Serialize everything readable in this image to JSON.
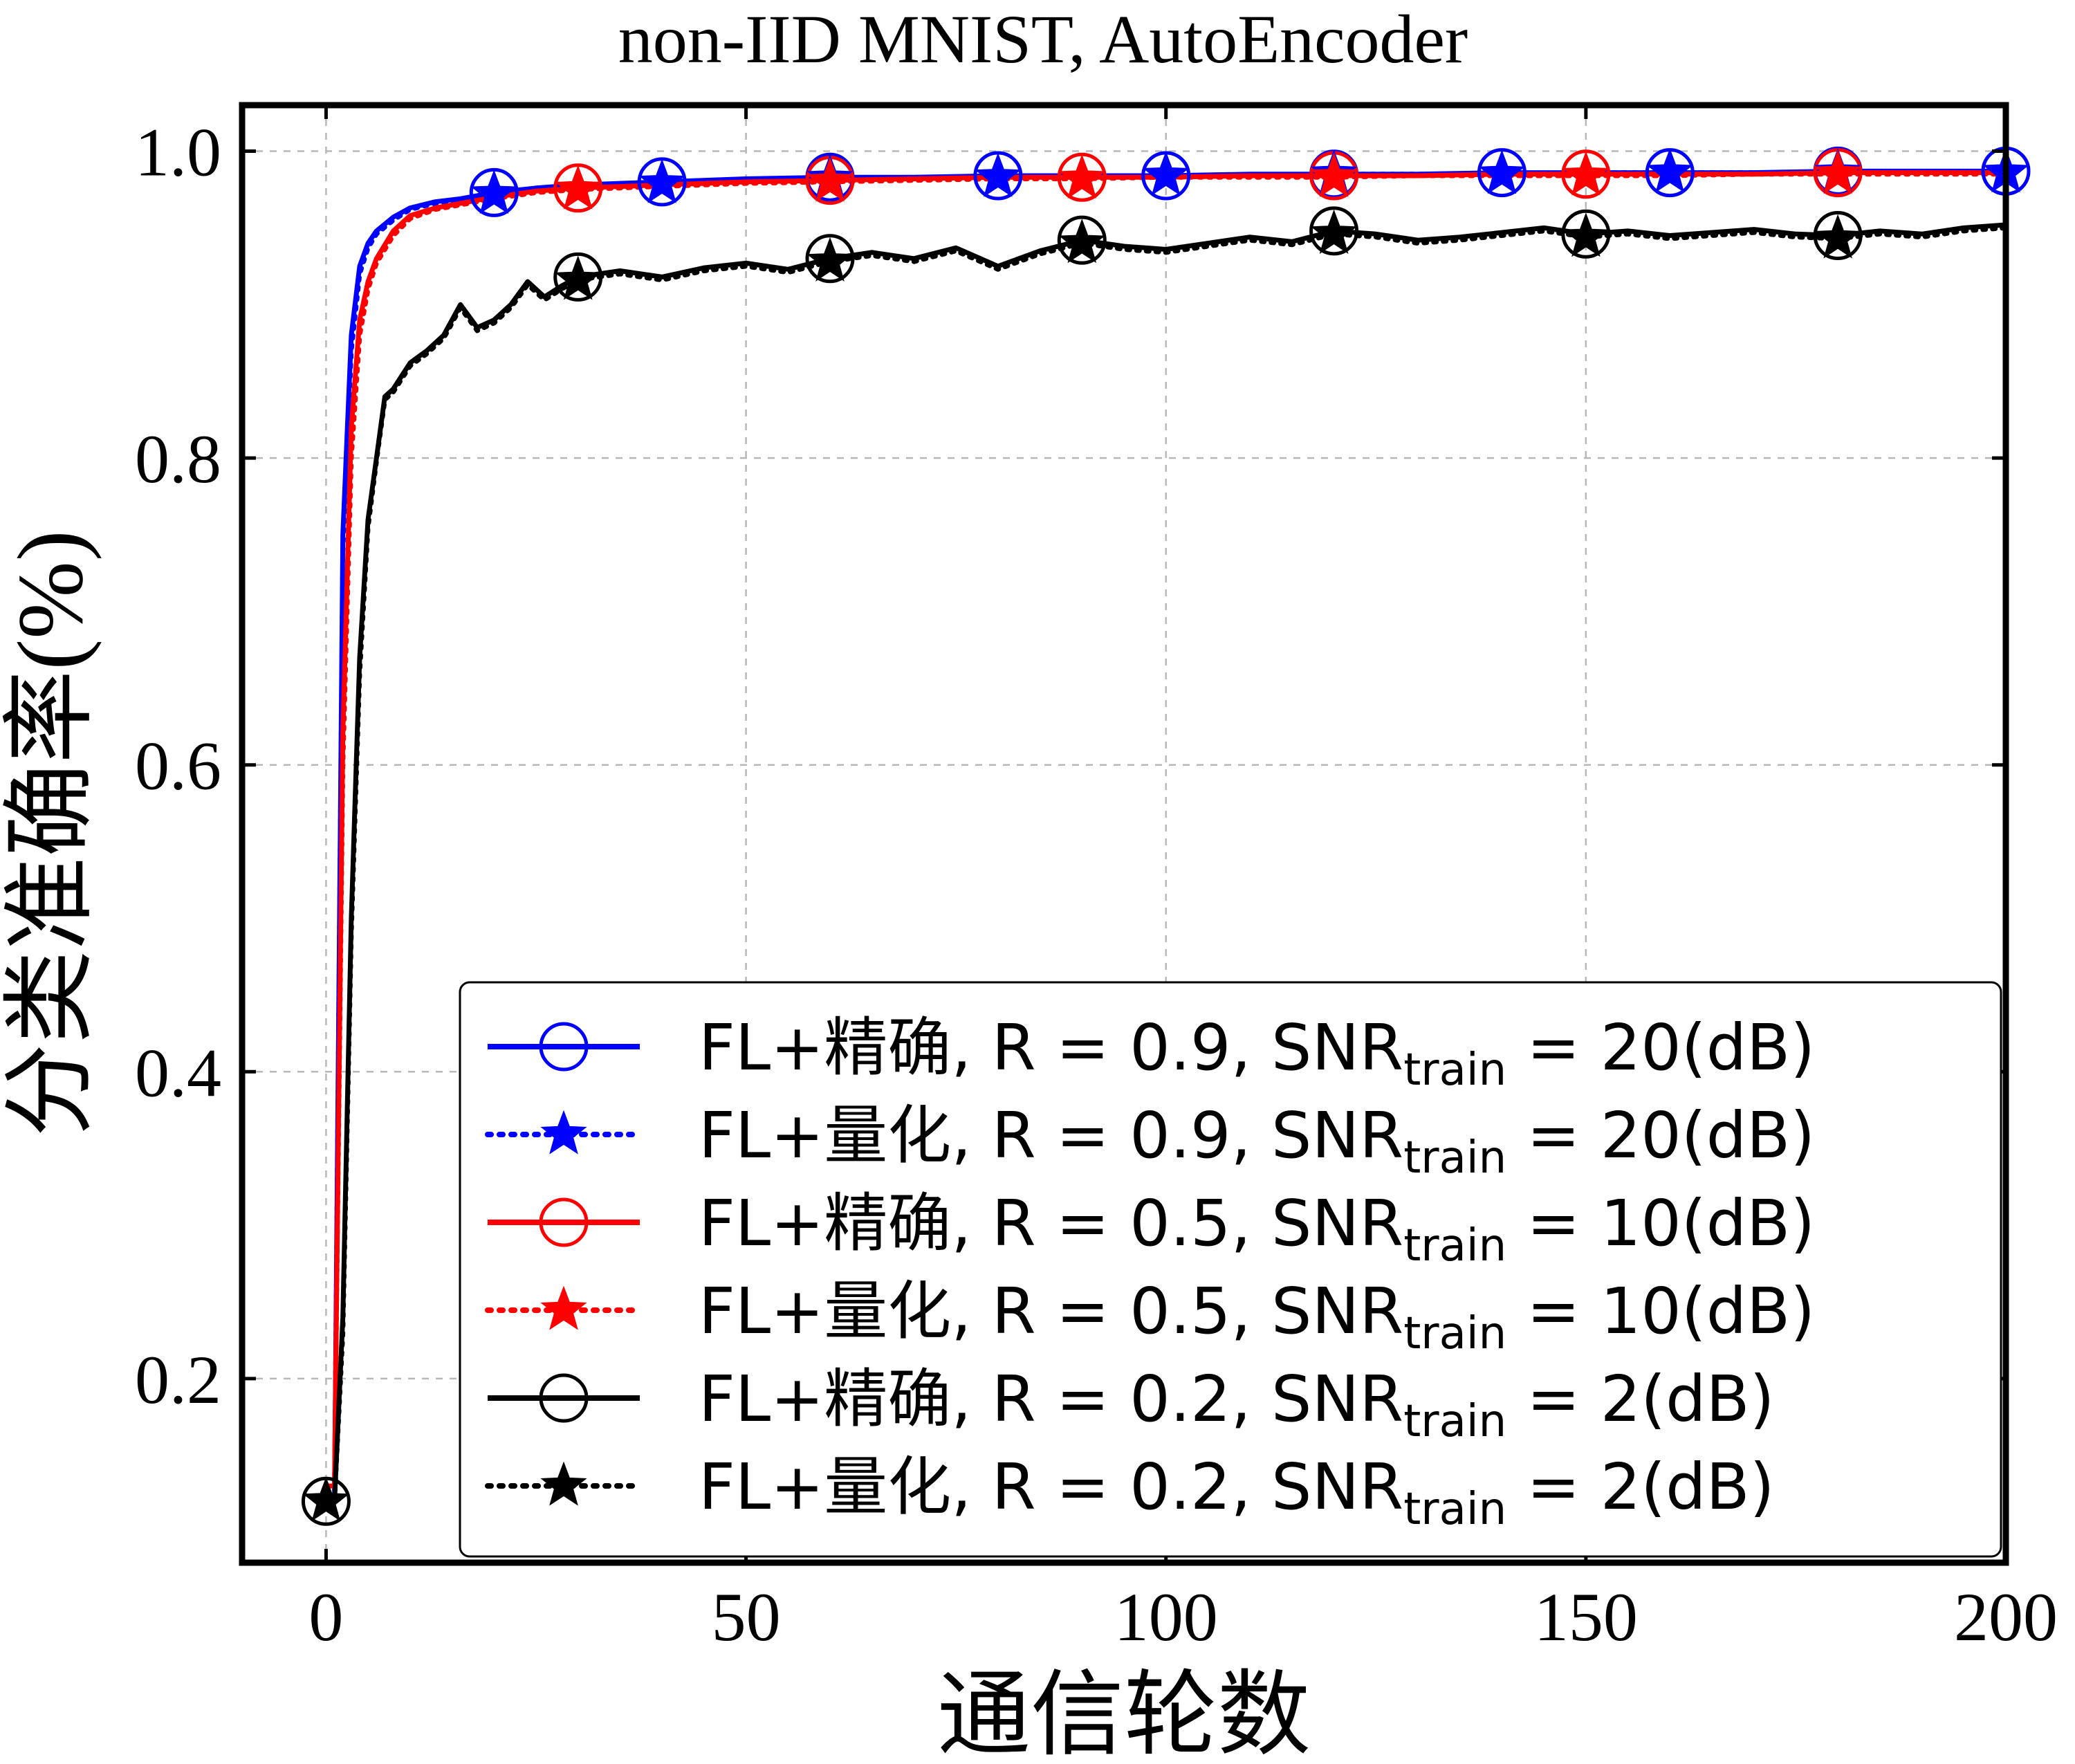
{
  "chart_data": {
    "type": "line",
    "title": "non-IID MNIST,  AutoEncoder",
    "xlabel": "通信轮数",
    "ylabel": "分类准确率(%)",
    "xlim": [
      -10,
      200
    ],
    "ylim": [
      0.08,
      1.03
    ],
    "xticks": [
      0,
      50,
      100,
      150,
      200
    ],
    "xtick_labels": [
      "0",
      "50",
      "100",
      "150",
      "200"
    ],
    "yticks": [
      0.2,
      0.4,
      0.6,
      0.8,
      1.0
    ],
    "ytick_labels": [
      "0.2",
      "0.4",
      "0.6",
      "0.8",
      "1.0"
    ],
    "grid": true,
    "legend_position": "lower-right",
    "series": [
      {
        "legend_prefix": "FL+精确,  R = 0.9, SNR",
        "legend_sub": "train",
        "legend_suffix": " = 20(dB)",
        "color": "#0000ff",
        "linestyle": "solid",
        "marker": "circle",
        "x": [
          0,
          1,
          2,
          3,
          4,
          5,
          6,
          8,
          10,
          13,
          16,
          20,
          25,
          30,
          40,
          50,
          60,
          70,
          80,
          90,
          100,
          110,
          120,
          130,
          140,
          150,
          160,
          170,
          180,
          190,
          200
        ],
        "y": [
          0.12,
          0.12,
          0.75,
          0.88,
          0.925,
          0.94,
          0.948,
          0.957,
          0.963,
          0.967,
          0.969,
          0.973,
          0.976,
          0.978,
          0.98,
          0.982,
          0.983,
          0.983,
          0.984,
          0.984,
          0.984,
          0.985,
          0.985,
          0.985,
          0.986,
          0.986,
          0.986,
          0.986,
          0.987,
          0.987,
          0.987
        ],
        "marker_x": [
          20,
          40,
          60,
          80,
          100,
          120,
          140,
          160,
          180,
          200
        ],
        "marker_y": [
          0.973,
          0.98,
          0.983,
          0.984,
          0.984,
          0.985,
          0.986,
          0.986,
          0.987,
          0.987
        ]
      },
      {
        "legend_prefix": "FL+量化,  R = 0.9, SNR",
        "legend_sub": "train",
        "legend_suffix": " = 20(dB)",
        "color": "#0000ff",
        "linestyle": "dotted",
        "marker": "star",
        "x": [
          0,
          1,
          2,
          3,
          4,
          5,
          6,
          8,
          10,
          13,
          16,
          20,
          25,
          30,
          40,
          50,
          60,
          70,
          80,
          90,
          100,
          110,
          120,
          130,
          140,
          150,
          160,
          170,
          180,
          190,
          200
        ],
        "y": [
          0.12,
          0.12,
          0.74,
          0.87,
          0.92,
          0.937,
          0.946,
          0.955,
          0.962,
          0.966,
          0.968,
          0.972,
          0.975,
          0.977,
          0.979,
          0.981,
          0.982,
          0.982,
          0.983,
          0.984,
          0.984,
          0.984,
          0.985,
          0.985,
          0.985,
          0.986,
          0.986,
          0.986,
          0.986,
          0.986,
          0.986
        ],
        "marker_x": [
          20,
          40,
          60,
          80,
          100,
          120,
          140,
          160,
          180,
          200
        ],
        "marker_y": [
          0.972,
          0.979,
          0.982,
          0.983,
          0.984,
          0.985,
          0.985,
          0.986,
          0.986,
          0.986
        ]
      },
      {
        "legend_prefix": "FL+精确,  R = 0.5, SNR",
        "legend_sub": "train",
        "legend_suffix": " = 10(dB)",
        "color": "#ff0000",
        "linestyle": "solid",
        "marker": "circle",
        "x": [
          0,
          1,
          2,
          3,
          4,
          5,
          6,
          8,
          10,
          13,
          16,
          20,
          25,
          30,
          40,
          50,
          60,
          70,
          80,
          90,
          100,
          110,
          120,
          130,
          140,
          150,
          160,
          170,
          180,
          190,
          200
        ],
        "y": [
          0.13,
          0.13,
          0.62,
          0.82,
          0.89,
          0.915,
          0.93,
          0.948,
          0.958,
          0.963,
          0.966,
          0.97,
          0.974,
          0.976,
          0.978,
          0.98,
          0.981,
          0.982,
          0.983,
          0.983,
          0.983,
          0.984,
          0.984,
          0.984,
          0.985,
          0.985,
          0.985,
          0.985,
          0.986,
          0.986,
          0.986
        ],
        "marker_x": [
          30,
          60,
          90,
          120,
          150,
          180
        ],
        "marker_y": [
          0.976,
          0.981,
          0.983,
          0.984,
          0.985,
          0.986
        ]
      },
      {
        "legend_prefix": "FL+量化,  R = 0.5, SNR",
        "legend_sub": "train",
        "legend_suffix": " = 10(dB)",
        "color": "#ff0000",
        "linestyle": "dotted",
        "marker": "star",
        "x": [
          0,
          1,
          2,
          3,
          4,
          5,
          6,
          8,
          10,
          13,
          16,
          20,
          25,
          30,
          40,
          50,
          60,
          70,
          80,
          90,
          100,
          110,
          120,
          130,
          140,
          150,
          160,
          170,
          180,
          190,
          200
        ],
        "y": [
          0.13,
          0.13,
          0.6,
          0.8,
          0.88,
          0.91,
          0.927,
          0.945,
          0.956,
          0.962,
          0.965,
          0.969,
          0.973,
          0.975,
          0.977,
          0.979,
          0.98,
          0.981,
          0.982,
          0.982,
          0.983,
          0.983,
          0.983,
          0.984,
          0.984,
          0.984,
          0.984,
          0.985,
          0.985,
          0.985,
          0.985
        ],
        "marker_x": [
          30,
          60,
          90,
          120,
          150,
          180
        ],
        "marker_y": [
          0.975,
          0.98,
          0.982,
          0.983,
          0.984,
          0.985
        ]
      },
      {
        "legend_prefix": "FL+精确,  R = 0.2, SNR",
        "legend_sub": "train",
        "legend_suffix": " = 2(dB)",
        "color": "#000000",
        "linestyle": "solid",
        "marker": "circle",
        "x": [
          0,
          1,
          2,
          3,
          4,
          5,
          6,
          7,
          8,
          10,
          12,
          14,
          16,
          18,
          20,
          22,
          24,
          26,
          28,
          30,
          35,
          40,
          45,
          50,
          55,
          60,
          65,
          70,
          75,
          80,
          85,
          90,
          95,
          100,
          105,
          110,
          115,
          120,
          125,
          130,
          135,
          140,
          145,
          150,
          155,
          160,
          165,
          170,
          175,
          180,
          185,
          190,
          195,
          200
        ],
        "y": [
          0.12,
          0.12,
          0.24,
          0.5,
          0.67,
          0.76,
          0.8,
          0.84,
          0.845,
          0.862,
          0.87,
          0.88,
          0.9,
          0.885,
          0.89,
          0.9,
          0.915,
          0.905,
          0.912,
          0.918,
          0.922,
          0.918,
          0.924,
          0.927,
          0.923,
          0.93,
          0.934,
          0.93,
          0.937,
          0.925,
          0.935,
          0.942,
          0.938,
          0.936,
          0.94,
          0.944,
          0.941,
          0.948,
          0.946,
          0.942,
          0.944,
          0.947,
          0.95,
          0.946,
          0.948,
          0.945,
          0.947,
          0.949,
          0.946,
          0.945,
          0.948,
          0.946,
          0.95,
          0.952
        ],
        "marker_x": [
          0,
          30,
          60,
          90,
          120,
          150,
          180
        ],
        "marker_y": [
          0.12,
          0.918,
          0.93,
          0.942,
          0.948,
          0.946,
          0.945
        ]
      },
      {
        "legend_prefix": "FL+量化,  R = 0.2, SNR",
        "legend_sub": "train",
        "legend_suffix": " = 2(dB)",
        "color": "#000000",
        "linestyle": "dotted",
        "marker": "star",
        "x": [
          0,
          1,
          2,
          3,
          4,
          5,
          6,
          7,
          8,
          10,
          12,
          14,
          16,
          18,
          20,
          22,
          24,
          26,
          28,
          30,
          35,
          40,
          45,
          50,
          55,
          60,
          65,
          70,
          75,
          80,
          85,
          90,
          95,
          100,
          105,
          110,
          115,
          120,
          125,
          130,
          135,
          140,
          145,
          150,
          155,
          160,
          165,
          170,
          175,
          180,
          185,
          190,
          195,
          200
        ],
        "y": [
          0.12,
          0.12,
          0.23,
          0.49,
          0.66,
          0.755,
          0.798,
          0.838,
          0.843,
          0.86,
          0.868,
          0.878,
          0.898,
          0.883,
          0.888,
          0.898,
          0.913,
          0.903,
          0.91,
          0.916,
          0.92,
          0.916,
          0.922,
          0.925,
          0.921,
          0.928,
          0.932,
          0.928,
          0.935,
          0.923,
          0.933,
          0.94,
          0.936,
          0.934,
          0.938,
          0.942,
          0.939,
          0.946,
          0.944,
          0.94,
          0.942,
          0.945,
          0.948,
          0.944,
          0.946,
          0.943,
          0.945,
          0.947,
          0.944,
          0.943,
          0.946,
          0.944,
          0.948,
          0.95
        ],
        "marker_x": [
          0,
          30,
          60,
          90,
          120,
          150,
          180
        ],
        "marker_y": [
          0.12,
          0.916,
          0.928,
          0.94,
          0.946,
          0.944,
          0.943
        ]
      }
    ]
  }
}
